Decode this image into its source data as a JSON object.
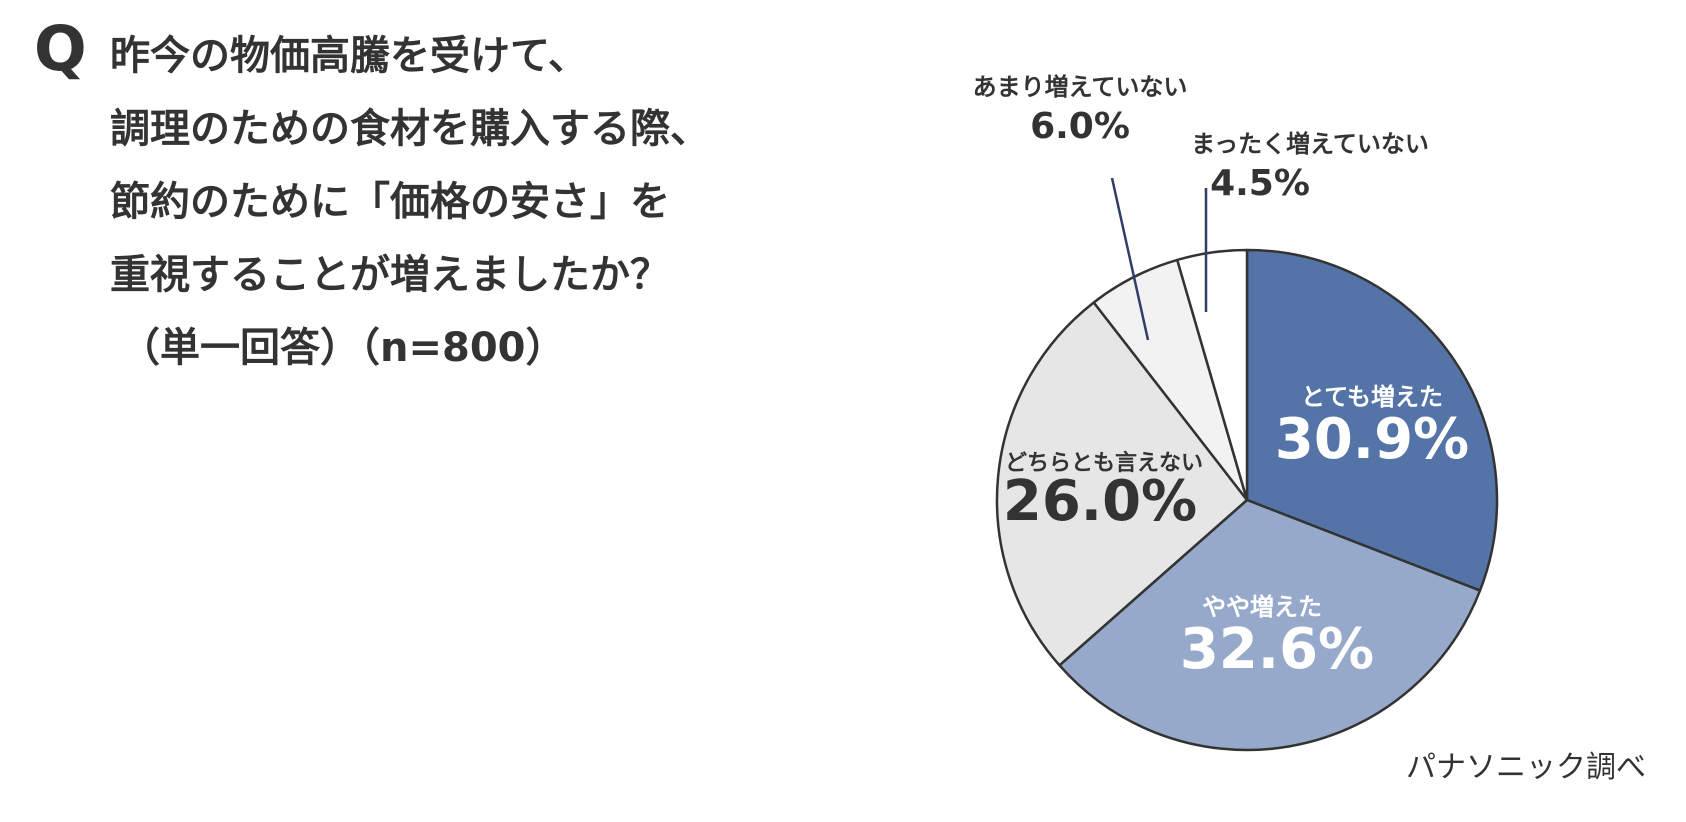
{
  "question": {
    "mark": "Q",
    "lines": [
      "昨今の物価高騰を受けて、",
      "調理のための食材を購入する際、",
      "節約のために「価格の安さ」を",
      "重視することが増えましたか？"
    ],
    "note": "（単一回答）（n=800）"
  },
  "credit": "パナソニック調べ",
  "chart_data": {
    "type": "pie",
    "unit": "%",
    "slices": [
      {
        "label": "とても増えた",
        "value": 30.9,
        "display": "30.9%",
        "color": "#5473a7",
        "text_color": "#ffffff"
      },
      {
        "label": "やや増えた",
        "value": 32.6,
        "display": "32.6%",
        "color": "#97a9ca",
        "text_color": "#ffffff"
      },
      {
        "label": "どちらとも言えない",
        "value": 26.0,
        "display": "26.0%",
        "color": "#e6e6e6",
        "text_color": "#333333"
      },
      {
        "label": "あまり増えていない",
        "value": 6.0,
        "display": "6.0%",
        "color": "#f2f2f2",
        "text_color": "#333333"
      },
      {
        "label": "まったく増えていない",
        "value": 4.5,
        "display": "4.5%",
        "color": "#ffffff",
        "text_color": "#333333"
      }
    ],
    "leader_line_color": "#2e3e66",
    "outline_color": "#333333"
  }
}
